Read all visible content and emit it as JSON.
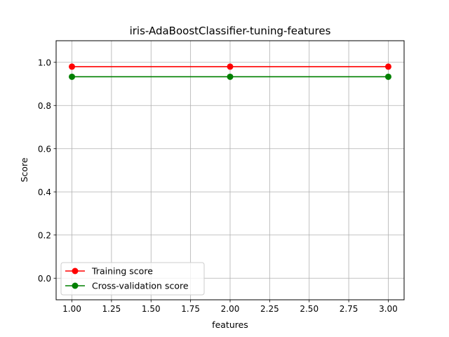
{
  "chart_data": {
    "type": "line",
    "title": "iris-AdaBoostClassifier-tuning-features",
    "xlabel": "features",
    "ylabel": "Score",
    "xlim": [
      0.9,
      3.1
    ],
    "ylim": [
      -0.1,
      1.1
    ],
    "x": [
      1.0,
      2.0,
      3.0
    ],
    "xticks": [
      "1.00",
      "1.25",
      "1.50",
      "1.75",
      "2.00",
      "2.25",
      "2.50",
      "2.75",
      "3.00"
    ],
    "xtick_values": [
      1.0,
      1.25,
      1.5,
      1.75,
      2.0,
      2.25,
      2.5,
      2.75,
      3.0
    ],
    "yticks": [
      "0.0",
      "0.2",
      "0.4",
      "0.6",
      "0.8",
      "1.0"
    ],
    "ytick_values": [
      0.0,
      0.2,
      0.4,
      0.6,
      0.8,
      1.0
    ],
    "grid": true,
    "legend_position": "lower-left",
    "series": [
      {
        "name": "Training score",
        "color": "#ff0000",
        "marker": "circle",
        "values": [
          0.98,
          0.98,
          0.98
        ]
      },
      {
        "name": "Cross-validation score",
        "color": "#008000",
        "marker": "circle",
        "values": [
          0.933,
          0.933,
          0.933
        ]
      }
    ]
  }
}
